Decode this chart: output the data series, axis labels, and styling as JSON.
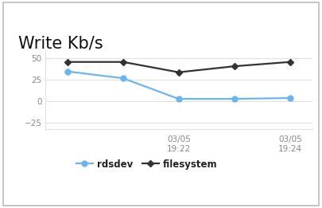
{
  "title": "Write Kb/s",
  "x_positions": [
    0,
    1,
    2,
    3,
    4
  ],
  "x_tick_positions": [
    2,
    4
  ],
  "x_tick_labels": [
    "03/05\n19:22",
    "03/05\n19:24"
  ],
  "rdsdev": [
    35,
    27,
    3,
    3,
    4
  ],
  "filesystem": [
    46,
    46,
    34,
    41,
    46
  ],
  "rdsdev_color": "#6ab4f0",
  "filesystem_color": "#333333",
  "ylim": [
    -32,
    60
  ],
  "yticks": [
    -25,
    0,
    25,
    50
  ],
  "title_fontsize": 15,
  "legend_labels": [
    "rdsdev",
    "filesystem"
  ],
  "background_color": "#ffffff",
  "border_color": "#bbbbbb",
  "grid_color": "#e0e0e0",
  "tick_color": "#888888"
}
